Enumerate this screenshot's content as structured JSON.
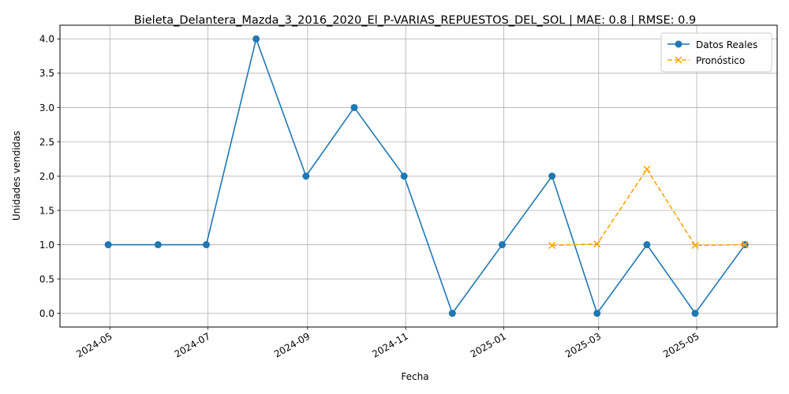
{
  "chart_data": {
    "type": "line",
    "title": "Bieleta_Delantera_Mazda_3_2016_2020_El_P-VARIAS_REPUESTOS_DEL_SOL | MAE: 0.8 | RMSE: 0.9",
    "xlabel": "Fecha",
    "ylabel": "Unidades vendidas",
    "ylim": [
      -0.2,
      4.2
    ],
    "xlim": [
      "2024-03-31",
      "2025-06-20"
    ],
    "grid": true,
    "legend_position": "top-right",
    "y_ticks": [
      "0.0",
      "0.5",
      "1.0",
      "1.5",
      "2.0",
      "2.5",
      "3.0",
      "3.5",
      "4.0"
    ],
    "x_ticks": [
      "2024-05",
      "2024-07",
      "2024-09",
      "2024-11",
      "2025-01",
      "2025-03",
      "2025-05"
    ],
    "series": [
      {
        "name": "Datos Reales",
        "color": "#1f77b4",
        "marker": "circle",
        "linestyle": "solid",
        "points": [
          {
            "x": "2024-04-30",
            "y": 1
          },
          {
            "x": "2024-05-31",
            "y": 1
          },
          {
            "x": "2024-06-30",
            "y": 1
          },
          {
            "x": "2024-07-31",
            "y": 4
          },
          {
            "x": "2024-08-31",
            "y": 2
          },
          {
            "x": "2024-09-30",
            "y": 3
          },
          {
            "x": "2024-10-31",
            "y": 2
          },
          {
            "x": "2024-11-30",
            "y": 0
          },
          {
            "x": "2024-12-31",
            "y": 1
          },
          {
            "x": "2025-01-31",
            "y": 2
          },
          {
            "x": "2025-02-28",
            "y": 0
          },
          {
            "x": "2025-03-31",
            "y": 1
          },
          {
            "x": "2025-04-30",
            "y": 0
          },
          {
            "x": "2025-05-31",
            "y": 1
          }
        ]
      },
      {
        "name": "Pronóstico",
        "color": "#ffa500",
        "marker": "x",
        "linestyle": "dashed",
        "points": [
          {
            "x": "2025-01-31",
            "y": 0.99
          },
          {
            "x": "2025-02-28",
            "y": 1.01
          },
          {
            "x": "2025-03-31",
            "y": 2.1
          },
          {
            "x": "2025-04-30",
            "y": 0.99
          },
          {
            "x": "2025-05-31",
            "y": 1.0
          }
        ]
      }
    ]
  }
}
